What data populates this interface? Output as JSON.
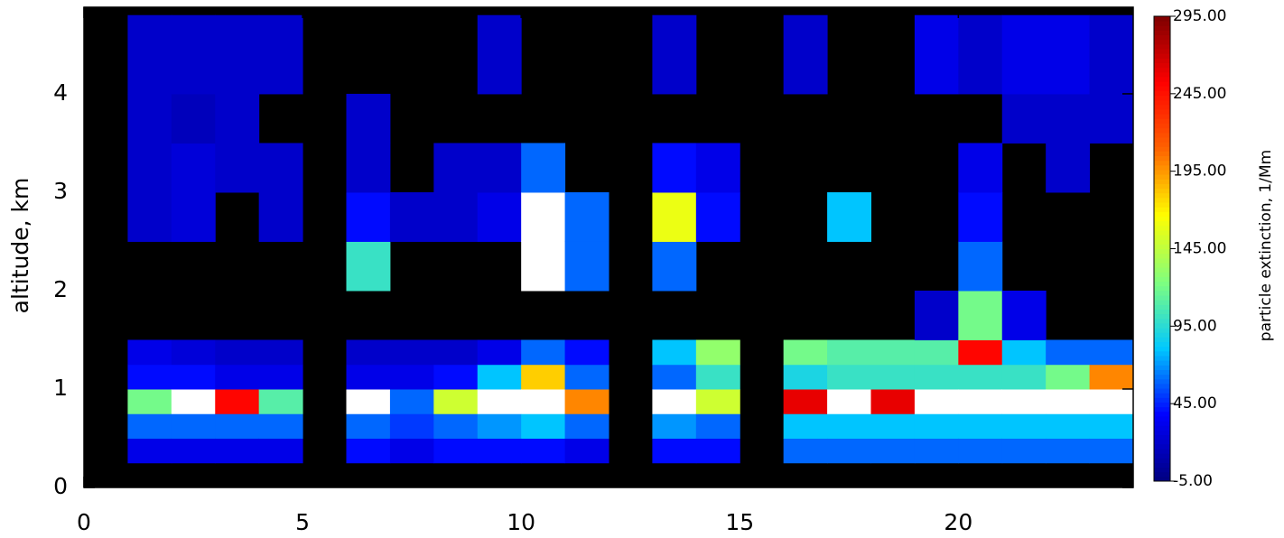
{
  "chart_data": {
    "type": "heatmap",
    "y_label": "altitude, km",
    "colorbar_label": "particle extinction, 1/Mm",
    "xlim": [
      0,
      24
    ],
    "ylim": [
      0,
      4.88
    ],
    "xticks": [
      0,
      5,
      10,
      15,
      20
    ],
    "yticks": [
      0,
      1,
      2,
      3,
      4
    ],
    "clim": [
      -5,
      295
    ],
    "cticks": [
      {
        "value": -5,
        "label": "-5.00"
      },
      {
        "value": 45,
        "label": "45.00"
      },
      {
        "value": 95,
        "label": "95.00"
      },
      {
        "value": 145,
        "label": "145.00"
      },
      {
        "value": 195,
        "label": "195.00"
      },
      {
        "value": 245,
        "label": "245.00"
      },
      {
        "value": 295,
        "label": "295.00"
      }
    ],
    "colormap": [
      "#00007f",
      "#0000ff",
      "#00c8ff",
      "#7fff7f",
      "#ffff00",
      "#ff6400",
      "#ff0000",
      "#7f0000"
    ],
    "over_color": "#ffffff",
    "missing_color": "#000000",
    "x_bins": [
      0,
      1,
      2,
      3,
      4,
      5,
      6,
      7,
      8,
      9,
      10,
      11,
      12,
      13,
      14,
      15,
      16,
      17,
      18,
      19,
      20,
      21,
      22,
      23,
      24
    ],
    "y_bins": [
      0.25,
      0.5,
      0.75,
      1.0,
      1.25,
      1.5,
      2.0,
      2.5,
      3.0,
      3.5,
      4.0,
      4.8
    ],
    "z": [
      [
        null,
        null,
        null,
        null,
        null,
        null,
        null,
        null,
        null,
        null,
        null
      ],
      [
        30,
        60,
        120,
        40,
        30,
        null,
        null,
        20,
        20,
        20,
        20
      ],
      [
        30,
        60,
        320,
        40,
        25,
        null,
        null,
        25,
        25,
        15,
        20
      ],
      [
        30,
        60,
        250,
        30,
        20,
        null,
        null,
        null,
        20,
        20,
        20
      ],
      [
        30,
        60,
        110,
        30,
        20,
        null,
        null,
        20,
        20,
        null,
        20
      ],
      [
        null,
        null,
        null,
        null,
        null,
        null,
        null,
        null,
        null,
        null,
        null
      ],
      [
        40,
        60,
        300,
        30,
        20,
        null,
        100,
        40,
        20,
        20,
        null
      ],
      [
        30,
        50,
        60,
        30,
        20,
        null,
        null,
        20,
        null,
        null,
        null
      ],
      [
        40,
        60,
        150,
        40,
        20,
        null,
        null,
        20,
        20,
        null,
        null
      ],
      [
        40,
        70,
        320,
        80,
        30,
        null,
        null,
        30,
        20,
        null,
        20
      ],
      [
        40,
        80,
        320,
        180,
        60,
        null,
        300,
        330,
        60,
        null,
        null
      ],
      [
        30,
        60,
        200,
        60,
        40,
        null,
        60,
        60,
        null,
        null,
        null
      ],
      [
        null,
        null,
        null,
        null,
        null,
        null,
        null,
        null,
        null,
        null,
        null
      ],
      [
        40,
        70,
        320,
        60,
        80,
        null,
        60,
        160,
        40,
        null,
        20
      ],
      [
        40,
        60,
        150,
        100,
        130,
        null,
        null,
        40,
        30,
        null,
        null
      ],
      [
        null,
        null,
        null,
        null,
        null,
        null,
        null,
        null,
        null,
        null,
        null
      ],
      [
        60,
        80,
        260,
        90,
        120,
        null,
        null,
        null,
        null,
        null,
        20
      ],
      [
        60,
        80,
        300,
        100,
        110,
        null,
        null,
        80,
        null,
        null,
        null
      ],
      [
        60,
        80,
        260,
        100,
        110,
        null,
        null,
        null,
        null,
        null,
        null
      ],
      [
        60,
        80,
        300,
        100,
        110,
        20,
        null,
        null,
        null,
        null,
        30
      ],
      [
        60,
        80,
        330,
        100,
        250,
        120,
        60,
        40,
        30,
        null,
        20
      ],
      [
        60,
        80,
        320,
        100,
        80,
        30,
        null,
        null,
        null,
        20,
        30
      ],
      [
        60,
        80,
        320,
        120,
        60,
        null,
        null,
        null,
        20,
        20,
        30
      ],
      [
        60,
        80,
        330,
        200,
        60,
        null,
        null,
        null,
        null,
        20,
        20
      ]
    ]
  }
}
